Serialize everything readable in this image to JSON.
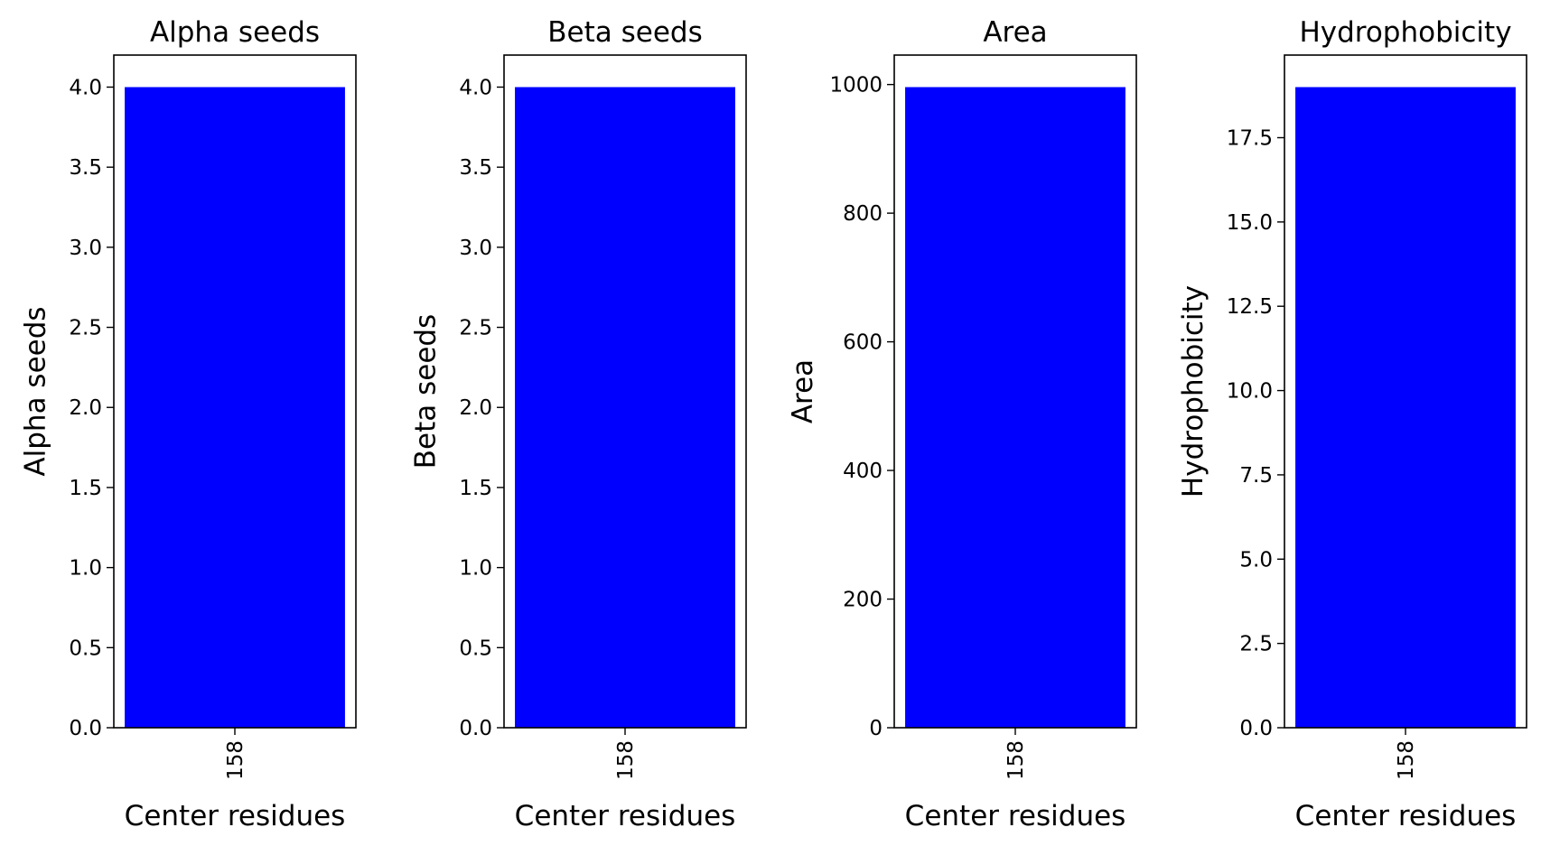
{
  "chart_data": [
    {
      "type": "bar",
      "title": "Alpha seeds",
      "xlabel": "Center residues",
      "ylabel": "Alpha seeds",
      "categories": [
        "158"
      ],
      "values": [
        4
      ],
      "ylim": [
        0,
        4.2
      ],
      "yticks": [
        0.0,
        0.5,
        1.0,
        1.5,
        2.0,
        2.5,
        3.0,
        3.5,
        4.0
      ],
      "ytick_labels": [
        "0.0",
        "0.5",
        "1.0",
        "1.5",
        "2.0",
        "2.5",
        "3.0",
        "3.5",
        "4.0"
      ],
      "bar_color": "#0000ff",
      "grid": false
    },
    {
      "type": "bar",
      "title": "Beta seeds",
      "xlabel": "Center residues",
      "ylabel": "Beta seeds",
      "categories": [
        "158"
      ],
      "values": [
        4
      ],
      "ylim": [
        0,
        4.2
      ],
      "yticks": [
        0.0,
        0.5,
        1.0,
        1.5,
        2.0,
        2.5,
        3.0,
        3.5,
        4.0
      ],
      "ytick_labels": [
        "0.0",
        "0.5",
        "1.0",
        "1.5",
        "2.0",
        "2.5",
        "3.0",
        "3.5",
        "4.0"
      ],
      "bar_color": "#0000ff",
      "grid": false
    },
    {
      "type": "bar",
      "title": "Area",
      "xlabel": "Center residues",
      "ylabel": "Area",
      "categories": [
        "158"
      ],
      "values": [
        996
      ],
      "ylim": [
        0,
        1045.8
      ],
      "yticks": [
        0,
        200,
        400,
        600,
        800,
        1000
      ],
      "ytick_labels": [
        "0",
        "200",
        "400",
        "600",
        "800",
        "1000"
      ],
      "bar_color": "#0000ff",
      "grid": false
    },
    {
      "type": "bar",
      "title": "Hydrophobicity",
      "xlabel": "Center residues",
      "ylabel": "Hydrophobicity",
      "categories": [
        "158"
      ],
      "values": [
        19
      ],
      "ylim": [
        0,
        19.95
      ],
      "yticks": [
        0.0,
        2.5,
        5.0,
        7.5,
        10.0,
        12.5,
        15.0,
        17.5
      ],
      "ytick_labels": [
        "0.0",
        "2.5",
        "5.0",
        "7.5",
        "10.0",
        "12.5",
        "15.0",
        "17.5"
      ],
      "bar_color": "#0000ff",
      "grid": false
    }
  ]
}
